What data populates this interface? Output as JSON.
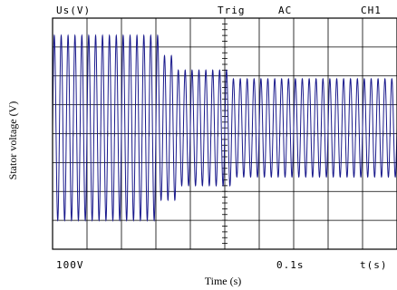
{
  "chart_data": {
    "type": "line",
    "channel_label": "Us(V)",
    "trigger_label": "Trig",
    "coupling_label": "AC",
    "channel_name": "CH1",
    "volts_per_div": "100V",
    "time_per_div": "0.1s",
    "time_axis_label": "t(s)",
    "xlabel": "Time (s)",
    "ylabel": "Stator voltage (V)",
    "grid": true,
    "divisions": {
      "x": 10,
      "y": 8
    },
    "xlim": [
      0,
      1.0
    ],
    "ylim": [
      -400,
      400
    ],
    "series": [
      {
        "segments": [
          {
            "t_start": 0.0,
            "t_end": 0.31,
            "amplitude_V": 320
          },
          {
            "t_start": 0.31,
            "t_end": 0.36,
            "amplitude_V": 250
          },
          {
            "t_start": 0.36,
            "t_end": 0.52,
            "amplitude_V": 200
          },
          {
            "t_start": 0.52,
            "t_end": 1.0,
            "amplitude_V": 170
          }
        ],
        "frequency_Hz": 50,
        "offset_V": 20
      }
    ],
    "colors": {
      "trace": "#1a1a8c",
      "grid": "#000000"
    }
  }
}
